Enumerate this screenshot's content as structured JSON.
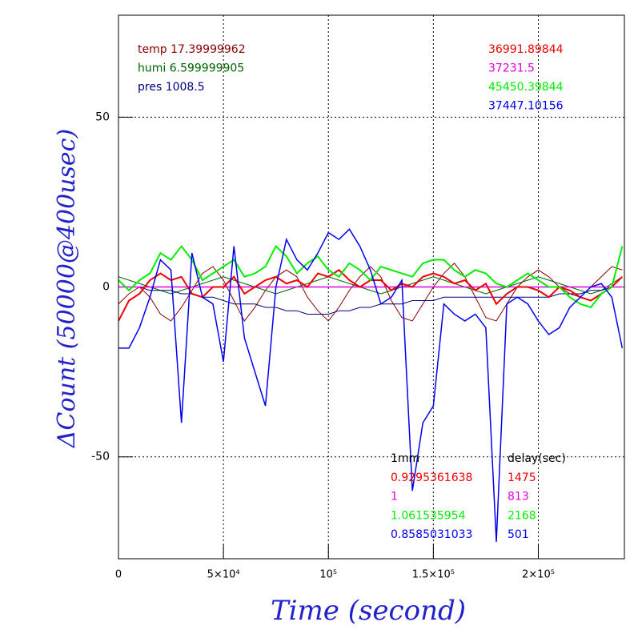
{
  "chart_data": {
    "type": "line",
    "xlabel": "Time (second)",
    "ylabel": "ΔCount (50000@400usec)",
    "xlim": [
      0,
      241000
    ],
    "ylim": [
      -80,
      80
    ],
    "xticks": [
      0,
      {
        "value": 50000,
        "label": "5×10⁴"
      },
      {
        "value": 100000,
        "label": "10⁵"
      },
      {
        "value": 150000,
        "label": "1.5×10⁵"
      },
      {
        "value": 200000,
        "label": "2×10⁵"
      }
    ],
    "yticks": [
      -50,
      0,
      50
    ],
    "grid": true,
    "x": [
      0,
      5000,
      10000,
      15000,
      20000,
      25000,
      30000,
      35000,
      40000,
      45000,
      50000,
      55000,
      60000,
      65000,
      70000,
      75000,
      80000,
      85000,
      90000,
      95000,
      100000,
      105000,
      110000,
      115000,
      120000,
      125000,
      130000,
      135000,
      140000,
      145000,
      150000,
      155000,
      160000,
      165000,
      170000,
      175000,
      180000,
      185000,
      190000,
      195000,
      200000,
      205000,
      210000,
      215000,
      220000,
      225000,
      230000,
      235000,
      240000
    ],
    "series": [
      {
        "name": "temp",
        "color": "#8b0000",
        "width": 1,
        "values": [
          -5,
          -2,
          0,
          -3,
          -8,
          -10,
          -6,
          -1,
          4,
          6,
          2,
          -4,
          -10,
          -6,
          -1,
          3,
          5,
          3,
          -3,
          -7,
          -10,
          -6,
          -1,
          3,
          6,
          3,
          -4,
          -9,
          -10,
          -5,
          0,
          4,
          7,
          3,
          -3,
          -9,
          -10,
          -5,
          0,
          3,
          5,
          3,
          0,
          -2,
          -3,
          0,
          3,
          6,
          5
        ]
      },
      {
        "name": "humi",
        "color": "#006400",
        "width": 1,
        "values": [
          3,
          2,
          1,
          0,
          -1,
          -2,
          -1,
          0,
          1,
          2,
          3,
          2,
          1,
          0,
          -1,
          -2,
          -1,
          0,
          1,
          2,
          3,
          2,
          1,
          0,
          -1,
          -2,
          -1,
          0,
          1,
          2,
          3,
          2,
          1,
          0,
          -1,
          -2,
          -1,
          0,
          1,
          2,
          3,
          2,
          1,
          0,
          -1,
          -2,
          -1,
          1,
          3
        ]
      },
      {
        "name": "pres",
        "color": "#000080",
        "width": 1,
        "values": [
          0,
          0,
          0,
          -1,
          -1,
          -1,
          -2,
          -2,
          -3,
          -3,
          -4,
          -5,
          -5,
          -5,
          -6,
          -6,
          -7,
          -7,
          -8,
          -8,
          -8,
          -7,
          -7,
          -6,
          -6,
          -5,
          -5,
          -5,
          -4,
          -4,
          -4,
          -3,
          -3,
          -3,
          -3,
          -3,
          -3,
          -3,
          -3,
          -3,
          -3,
          -3,
          -2,
          -2,
          -2,
          -1,
          -1,
          0,
          0
        ]
      },
      {
        "name": "magenta",
        "color": "#dd00dd",
        "width": 1.5,
        "values": [
          0,
          0,
          0,
          0,
          0,
          0,
          0,
          0,
          0,
          0,
          0,
          0,
          0,
          0,
          0,
          0,
          0,
          0,
          0,
          0,
          0,
          0,
          0,
          0,
          0,
          0,
          0,
          0,
          0,
          0,
          0,
          0,
          0,
          0,
          0,
          0,
          0,
          0,
          0,
          0,
          0,
          0,
          0,
          0,
          0,
          0,
          0,
          0,
          0
        ]
      },
      {
        "name": "red",
        "color": "#ee0000",
        "width": 2,
        "values": [
          -10,
          -4,
          -2,
          2,
          4,
          2,
          3,
          -2,
          -3,
          0,
          0,
          3,
          -2,
          0,
          2,
          3,
          1,
          2,
          0,
          4,
          3,
          5,
          2,
          0,
          2,
          2,
          -1,
          1,
          0,
          3,
          4,
          3,
          1,
          2,
          -1,
          1,
          -5,
          -2,
          0,
          0,
          -1,
          -3,
          0,
          -1,
          -3,
          -4,
          -2,
          0,
          3
        ]
      },
      {
        "name": "green",
        "color": "#00ee00",
        "width": 2,
        "values": [
          2,
          -1,
          2,
          4,
          10,
          8,
          12,
          8,
          2,
          4,
          6,
          8,
          3,
          4,
          6,
          12,
          9,
          4,
          7,
          9,
          5,
          3,
          7,
          5,
          2,
          6,
          5,
          4,
          3,
          7,
          8,
          8,
          5,
          3,
          5,
          4,
          1,
          0,
          2,
          4,
          2,
          0,
          0,
          -3,
          -5,
          -6,
          -2,
          0,
          12
        ]
      },
      {
        "name": "blue",
        "color": "#0000ee",
        "width": 1.5,
        "values": [
          -18,
          -18,
          -12,
          -3,
          8,
          5,
          -40,
          10,
          -3,
          -5,
          -22,
          12,
          -15,
          -25,
          -35,
          0,
          14,
          8,
          5,
          10,
          16,
          14,
          17,
          12,
          5,
          -5,
          -3,
          2,
          -60,
          -40,
          -35,
          -5,
          -8,
          -10,
          -8,
          -12,
          -75,
          -5,
          -3,
          -5,
          -10,
          -14,
          -12,
          -6,
          -3,
          0,
          1,
          -3,
          -18
        ]
      }
    ],
    "annotations_top_left": [
      {
        "text": "temp 17.39999962",
        "color": "#8b0000"
      },
      {
        "text": "humi 6.599999905",
        "color": "#006400"
      },
      {
        "text": "pres 1008.5",
        "color": "#000080"
      }
    ],
    "annotations_top_right": [
      {
        "text": "36991.89844",
        "color": "#ee0000"
      },
      {
        "text": "37231.5",
        "color": "#dd00dd"
      },
      {
        "text": "45450.39844",
        "color": "#00ee00"
      },
      {
        "text": "37447.10156",
        "color": "#0000ee"
      }
    ],
    "table": {
      "headers": [
        "1mm",
        "delay(sec)"
      ],
      "rows": [
        {
          "color": "#ee0000",
          "cells": [
            "0.9295361638",
            "1475"
          ]
        },
        {
          "color": "#dd00dd",
          "cells": [
            "1",
            "813"
          ]
        },
        {
          "color": "#00ee00",
          "cells": [
            "1.061535954",
            "2168"
          ]
        },
        {
          "color": "#0000ee",
          "cells": [
            "0.8585031033",
            "501"
          ]
        }
      ]
    }
  }
}
